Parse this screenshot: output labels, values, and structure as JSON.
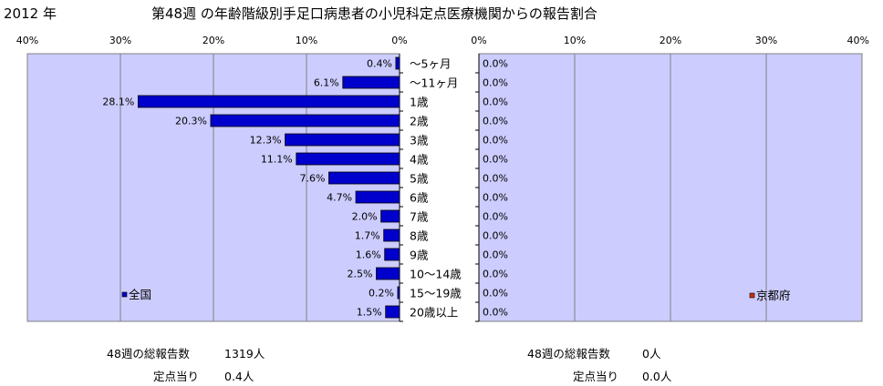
{
  "header": {
    "year": "2012 年",
    "title": "第48週 の年齢階級別手足口病患者の小児科定点医療機関からの報告割合"
  },
  "chart_data": [
    {
      "type": "bar",
      "orientation": "horizontal",
      "direction": "right-to-left",
      "xlim": [
        0,
        40
      ],
      "x_ticks": [
        "40%",
        "30%",
        "20%",
        "10%",
        "0%"
      ],
      "categories": [
        "〜5ヶ月",
        "〜11ヶ月",
        "1歳",
        "2歳",
        "3歳",
        "4歳",
        "5歳",
        "6歳",
        "7歳",
        "8歳",
        "9歳",
        "10〜14歳",
        "15〜19歳",
        "20歳以上"
      ],
      "series": [
        {
          "name": "全国",
          "color": "#0000cc",
          "values": [
            0.4,
            6.1,
            28.1,
            20.3,
            12.3,
            11.1,
            7.6,
            4.7,
            2.0,
            1.7,
            1.6,
            2.5,
            0.2,
            1.5
          ],
          "labels": [
            "0.4%",
            "6.1%",
            "28.1%",
            "20.3%",
            "12.3%",
            "11.1%",
            "7.6%",
            "4.7%",
            "2.0%",
            "1.7%",
            "1.6%",
            "2.5%",
            "0.2%",
            "1.5%"
          ]
        }
      ],
      "legend": "bottom-left",
      "grid": true
    },
    {
      "type": "bar",
      "orientation": "horizontal",
      "direction": "left-to-right",
      "xlim": [
        0,
        40
      ],
      "x_ticks": [
        "0%",
        "10%",
        "20%",
        "30%",
        "40%"
      ],
      "categories": [
        "〜5ヶ月",
        "〜11ヶ月",
        "1歳",
        "2歳",
        "3歳",
        "4歳",
        "5歳",
        "6歳",
        "7歳",
        "8歳",
        "9歳",
        "10〜14歳",
        "15〜19歳",
        "20歳以上"
      ],
      "series": [
        {
          "name": "京都府",
          "color": "#cc3300",
          "values": [
            0,
            0,
            0,
            0,
            0,
            0,
            0,
            0,
            0,
            0,
            0,
            0,
            0,
            0
          ],
          "labels": [
            "0.0%",
            "0.0%",
            "0.0%",
            "0.0%",
            "0.0%",
            "0.0%",
            "0.0%",
            "0.0%",
            "0.0%",
            "0.0%",
            "0.0%",
            "0.0%",
            "0.0%",
            "0.0%"
          ]
        }
      ],
      "legend": "bottom-right",
      "grid": true
    }
  ],
  "stats": {
    "national": {
      "total_label": "48週の総報告数",
      "total_value": "1319人",
      "per_label": "定点当り",
      "per_value": "0.4人"
    },
    "kyoto": {
      "total_label": "48週の総報告数",
      "total_value": "0人",
      "per_label": "定点当り",
      "per_value": "0.0人"
    }
  },
  "colors": {
    "plot_background": "#ccccff",
    "gridline": "#808080"
  }
}
